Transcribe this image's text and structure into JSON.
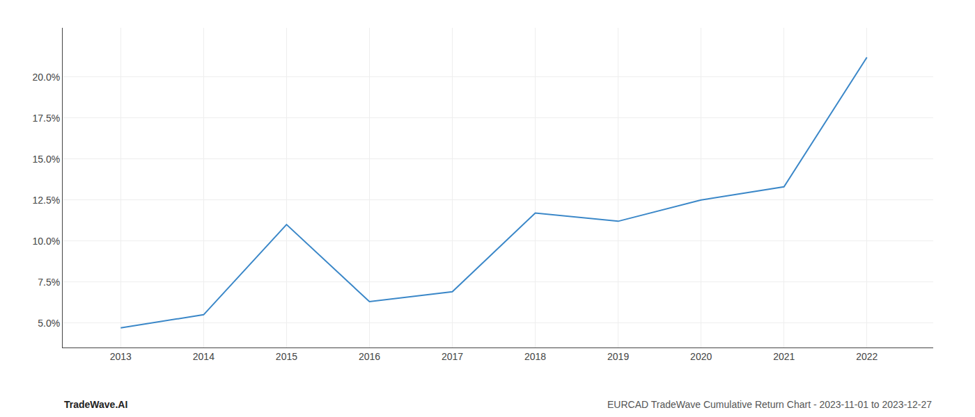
{
  "chart_data": {
    "type": "line",
    "x": [
      2013,
      2014,
      2015,
      2016,
      2017,
      2018,
      2019,
      2020,
      2021,
      2022
    ],
    "values": [
      4.7,
      5.5,
      11.0,
      6.3,
      6.9,
      11.7,
      11.2,
      12.5,
      13.3,
      21.2
    ],
    "color": "#3a87c8",
    "xlim": [
      2012.3,
      2022.8
    ],
    "xticks": [
      2013,
      2014,
      2015,
      2016,
      2017,
      2018,
      2019,
      2020,
      2021,
      2022
    ],
    "ylim": [
      3.5,
      23.0
    ],
    "yticks": [
      {
        "value": 5.0,
        "label": "5.0%"
      },
      {
        "value": 7.5,
        "label": "7.5%"
      },
      {
        "value": 10.0,
        "label": "10.0%"
      },
      {
        "value": 12.5,
        "label": "12.5%"
      },
      {
        "value": 15.0,
        "label": "15.0%"
      },
      {
        "value": 17.5,
        "label": "17.5%"
      },
      {
        "value": 20.0,
        "label": "20.0%"
      }
    ],
    "grid": true,
    "annotations": [
      "TradeWave.AI",
      "EURCAD TradeWave Cumulative Return Chart - 2023-11-01 to 2023-12-27"
    ]
  }
}
